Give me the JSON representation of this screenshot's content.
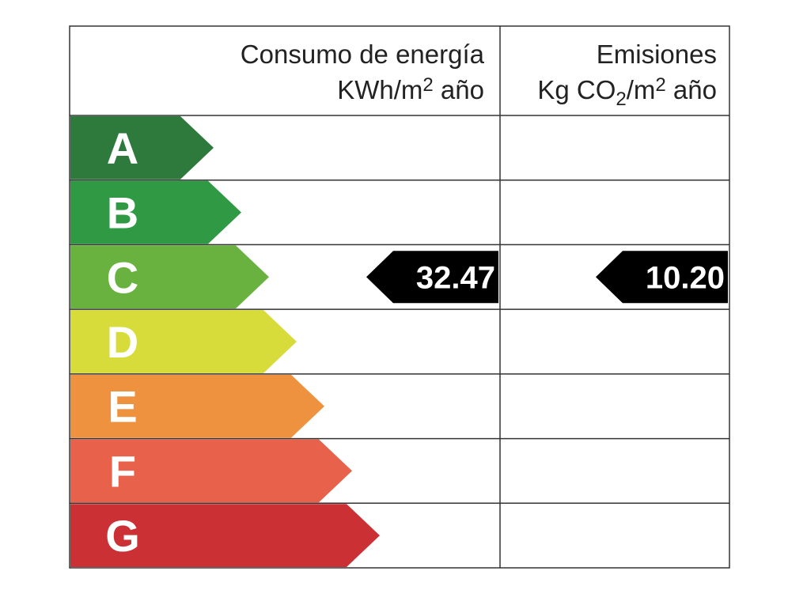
{
  "header": {
    "consumo": {
      "title": "Consumo de energía",
      "unit": [
        {
          "text": "KWh/m"
        },
        {
          "text": "2",
          "script": "sup"
        },
        {
          "text": " año"
        }
      ]
    },
    "emisiones": {
      "title": "Emisiones",
      "unit": [
        {
          "text": "Kg CO"
        },
        {
          "text": "2",
          "script": "sub"
        },
        {
          "text": "/m"
        },
        {
          "text": "2",
          "script": "sup"
        },
        {
          "text": " año"
        }
      ]
    }
  },
  "rows": [
    {
      "letter": "A",
      "color": "#2e7a3c"
    },
    {
      "letter": "B",
      "color": "#2f9944"
    },
    {
      "letter": "C",
      "color": "#6ab23f"
    },
    {
      "letter": "D",
      "color": "#d7dc3b"
    },
    {
      "letter": "E",
      "color": "#ef9240"
    },
    {
      "letter": "F",
      "color": "#e8624b"
    },
    {
      "letter": "G",
      "color": "#cb3035"
    }
  ],
  "ratings": {
    "consumo": {
      "letter": "C",
      "value": "32.47"
    },
    "emisiones": {
      "letter": "C",
      "value": "10.20"
    }
  }
}
